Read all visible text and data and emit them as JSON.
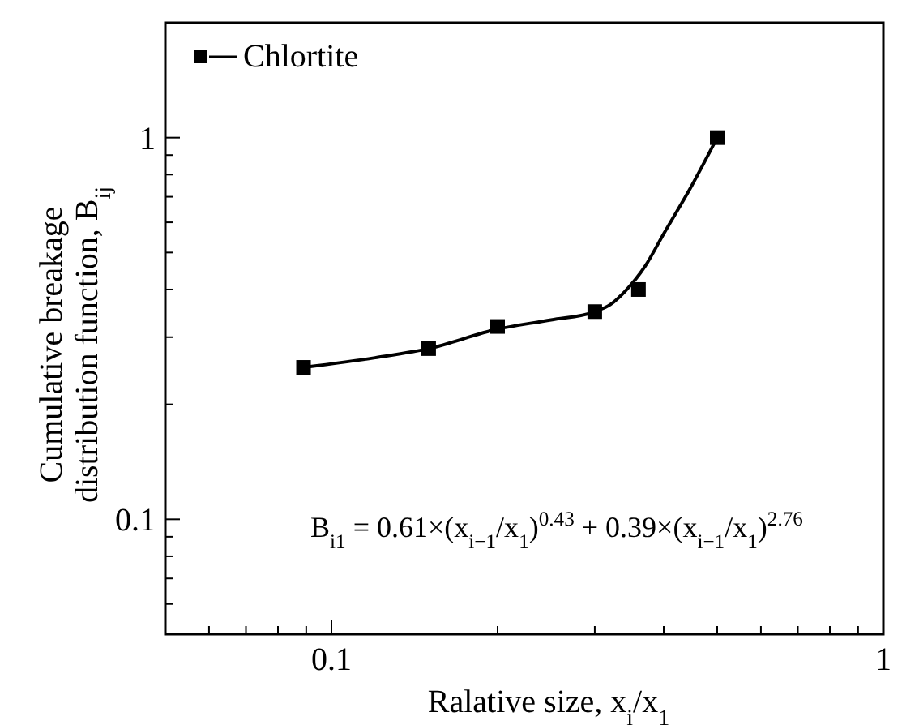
{
  "chart_data": {
    "type": "scatter",
    "xlabel": "Ralative size, x$_{i}$/x$_{1}$",
    "ylabel": "Cumulative breakage distribution function, B$_{ij}$",
    "log": "xy",
    "xlim": [
      0.05,
      1
    ],
    "ylim": [
      0.05,
      2
    ],
    "xticks": [
      {
        "value": 0.06,
        "label": null
      },
      {
        "value": 0.07,
        "label": null
      },
      {
        "value": 0.08,
        "label": null
      },
      {
        "value": 0.09,
        "label": null
      },
      0.1,
      {
        "value": 0.2,
        "label": null
      },
      {
        "value": 0.3,
        "label": null
      },
      {
        "value": 0.4,
        "label": null
      },
      {
        "value": 0.5,
        "label": null
      },
      {
        "value": 0.6,
        "label": null
      },
      {
        "value": 0.7,
        "label": null
      },
      {
        "value": 0.8,
        "label": null
      },
      {
        "value": 0.9,
        "label": null
      },
      1
    ],
    "yticks": [
      {
        "value": 0.06,
        "label": null
      },
      {
        "value": 0.07,
        "label": null
      },
      {
        "value": 0.08,
        "label": null
      },
      {
        "value": 0.09,
        "label": null
      },
      0.1,
      {
        "value": 0.2,
        "label": null
      },
      {
        "value": 0.3,
        "label": null
      },
      {
        "value": 0.4,
        "label": null
      },
      {
        "value": 0.5,
        "label": null
      },
      {
        "value": 0.6,
        "label": null
      },
      {
        "value": 0.7,
        "label": null
      },
      {
        "value": 0.8,
        "label": null
      },
      {
        "value": 0.9,
        "label": null
      },
      1,
      {
        "value": 2,
        "label": null
      }
    ],
    "grid": false,
    "legend": "top left",
    "marker": "square",
    "series": [
      {
        "name": "Chlortite",
        "color": "#000000",
        "x": [
          0.089,
          0.15,
          0.2,
          0.3,
          0.36,
          0.5
        ],
        "values": [
          0.25,
          0.28,
          0.32,
          0.35,
          0.4,
          1.0
        ]
      },
      {
        "type": "line",
        "color": "#000000",
        "line_style": "solid",
        "marker": "none",
        "x": [
          0.089,
          0.12,
          0.15,
          0.2,
          0.25,
          0.3,
          0.32,
          0.34,
          0.37,
          0.4,
          0.45,
          0.5
        ],
        "values": [
          0.25,
          0.265,
          0.28,
          0.315,
          0.333,
          0.35,
          0.365,
          0.395,
          0.46,
          0.56,
          0.75,
          1.0
        ]
      }
    ],
    "annotations": [
      "B$_{i1}$ = 0.61×(x$_{i−1}$/x$_{1}$)$^{0.43}$ + 0.39×(x$_{i−1}$/x$_{1}$)$^{2.76}$"
    ]
  }
}
